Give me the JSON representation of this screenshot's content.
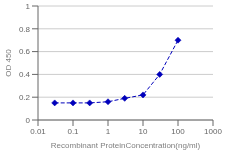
{
  "chart_data": {
    "type": "line",
    "x_label": "Recombinant ProteinConcentration(ng/ml)",
    "y_label": "OD 450",
    "x": [
      0.03,
      0.1,
      0.3,
      1,
      3,
      10,
      30,
      100
    ],
    "values": [
      0.15,
      0.15,
      0.15,
      0.16,
      0.19,
      0.22,
      0.4,
      0.7
    ],
    "color": "#0000bb",
    "marker": "diamond",
    "line_style": "dashed",
    "log": "x",
    "xlim": [
      0.01,
      1000
    ],
    "xticks": [
      0.01,
      0.1,
      1,
      10,
      100,
      1000
    ],
    "ylim": [
      0,
      1
    ],
    "yticks": [
      0,
      0.2,
      0.4,
      0.6,
      0.8,
      1
    ],
    "grid": "y"
  }
}
